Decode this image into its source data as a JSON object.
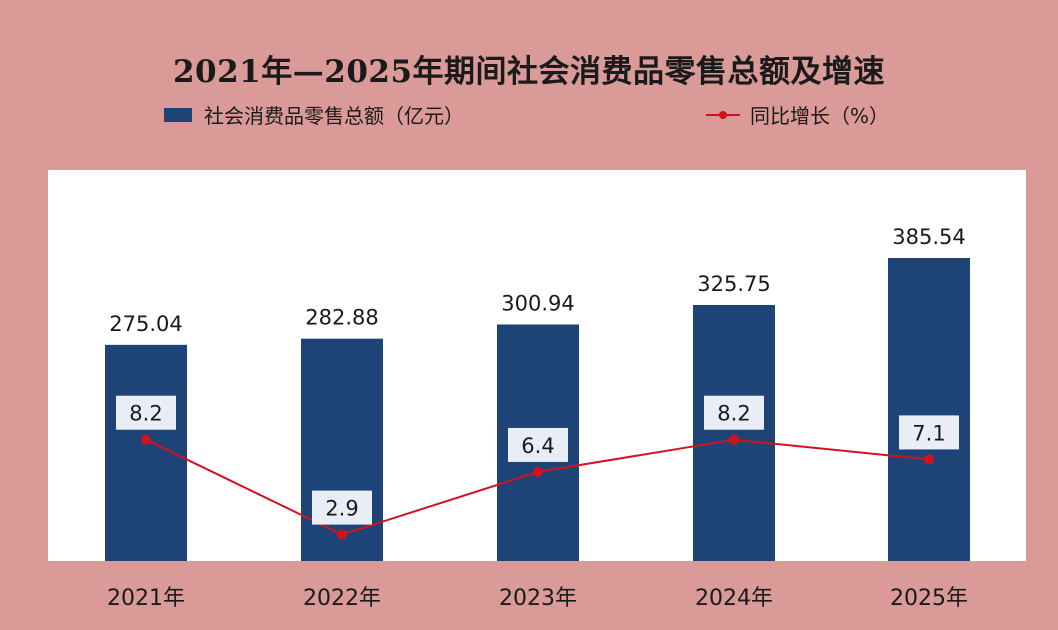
{
  "chart_data": {
    "type": "bar",
    "title": "2021年—2025年期间社会消费品零售总额及增速",
    "categories": [
      "2021年",
      "2022年",
      "2023年",
      "2024年",
      "2025年"
    ],
    "series": [
      {
        "name": "社会消费品零售总额（亿元）",
        "type": "bar",
        "values": [
          275.04,
          282.88,
          300.94,
          325.75,
          385.54
        ],
        "color": "#1e4477"
      },
      {
        "name": "同比增长（%）",
        "type": "line",
        "values": [
          8.2,
          2.9,
          6.4,
          8.2,
          7.1
        ],
        "color": "#d4121f"
      }
    ],
    "bar_labels": [
      "275.04",
      "282.88",
      "300.94",
      "325.75",
      "385.54"
    ],
    "line_labels": [
      "8.2",
      "2.9",
      "6.4",
      "8.2",
      "7.1"
    ],
    "ylim_bar": [
      0,
      385.54
    ],
    "grid": false,
    "legend_position": "top"
  },
  "colors": {
    "background": "#d99a98",
    "plot_area": "#ffffff",
    "bar": "#1e4477",
    "line": "#d4121f",
    "label_box": "#e9eef6"
  }
}
